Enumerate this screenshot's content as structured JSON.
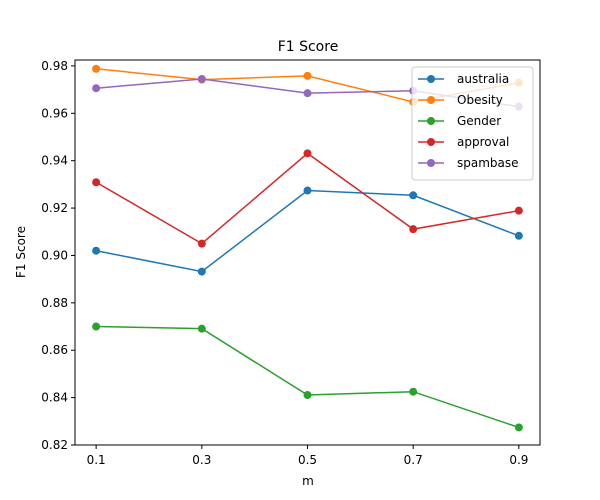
{
  "chart_data": {
    "type": "line",
    "title": "F1 Score",
    "xlabel": "m",
    "ylabel": "F1 Score",
    "x": [
      0.1,
      0.3,
      0.5,
      0.7,
      0.9
    ],
    "x_tick_labels": [
      "0.1",
      "0.3",
      "0.5",
      "0.7",
      "0.9"
    ],
    "xlim": [
      0.06,
      0.94
    ],
    "ylim": [
      0.82,
      0.9825
    ],
    "y_ticks": [
      0.82,
      0.84,
      0.86,
      0.88,
      0.9,
      0.92,
      0.94,
      0.96,
      0.98
    ],
    "y_tick_labels": [
      "0.82",
      "0.84",
      "0.86",
      "0.88",
      "0.90",
      "0.92",
      "0.94",
      "0.96",
      "0.98"
    ],
    "grid": false,
    "legend_position": "top-right",
    "series": [
      {
        "name": "australia",
        "color": "#1f77b4",
        "values": [
          0.902,
          0.8932,
          0.9274,
          0.9254,
          0.9083
        ]
      },
      {
        "name": "Obesity",
        "color": "#ff7f0e",
        "values": [
          0.9788,
          0.9742,
          0.9758,
          0.9648,
          0.9729
        ]
      },
      {
        "name": "Gender",
        "color": "#2ca02c",
        "values": [
          0.87,
          0.8691,
          0.8411,
          0.8425,
          0.8274
        ]
      },
      {
        "name": "approval",
        "color": "#d62728",
        "values": [
          0.9309,
          0.905,
          0.9431,
          0.9111,
          0.9189
        ]
      },
      {
        "name": "spambase",
        "color": "#9467bd",
        "values": [
          0.9706,
          0.9745,
          0.9685,
          0.9695,
          0.9628
        ]
      }
    ]
  }
}
